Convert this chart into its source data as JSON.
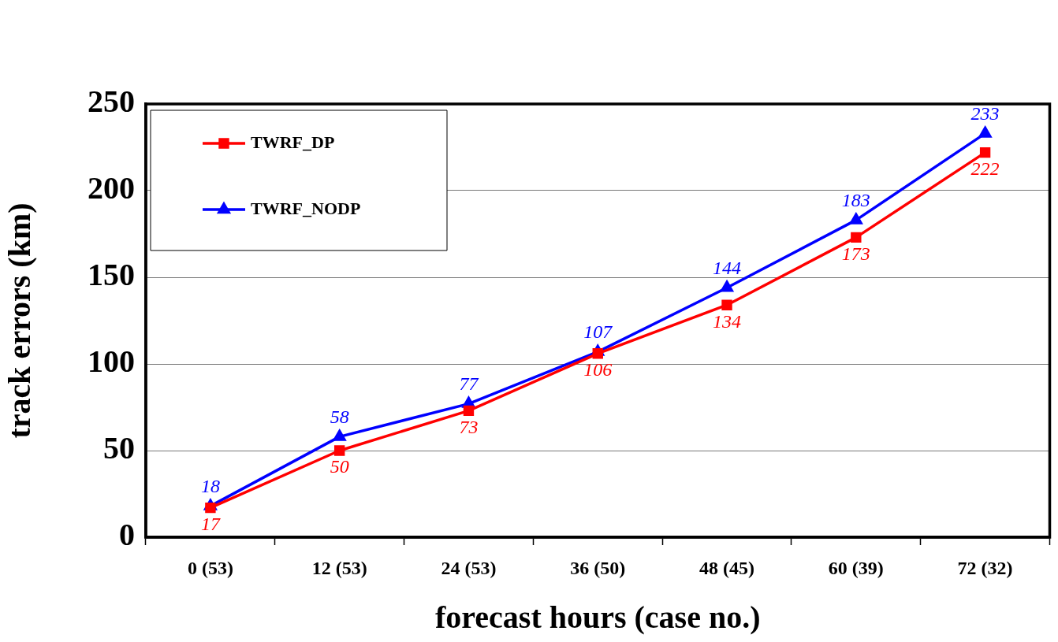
{
  "chart_data": {
    "type": "line",
    "xlabel": "forecast hours (case no.)",
    "ylabel": "track errors (km)",
    "categories": [
      "0 (53)",
      "12 (53)",
      "24 (53)",
      "36 (50)",
      "48 (45)",
      "60 (39)",
      "72 (32)"
    ],
    "series": [
      {
        "name": "TWRF_DP",
        "color": "#ff0000",
        "marker": "square",
        "values": [
          17,
          50,
          73,
          106,
          134,
          173,
          222
        ]
      },
      {
        "name": "TWRF_NODP",
        "color": "#0000ff",
        "marker": "triangle",
        "values": [
          18,
          58,
          77,
          107,
          144,
          183,
          233
        ]
      }
    ],
    "ylim": [
      0,
      250
    ],
    "yticks": [
      0,
      50,
      100,
      150,
      200,
      250
    ],
    "grid": "y",
    "legend": "top left",
    "data_labels": true,
    "line_style": "solid"
  }
}
